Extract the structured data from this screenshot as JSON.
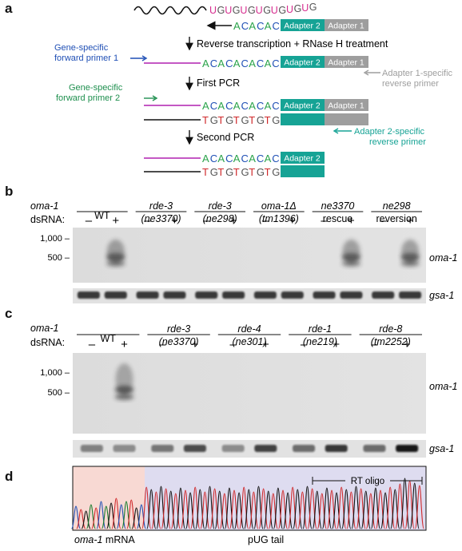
{
  "figure": {
    "panel_a": {
      "label": "a",
      "rna_tail": [
        "U",
        "G",
        "U",
        "G",
        "U",
        "G",
        "U",
        "G",
        "U",
        "G",
        "U",
        "G",
        "U",
        "G"
      ],
      "rt_oligo_seq": [
        "A",
        "C",
        "A",
        "C",
        "A",
        "C"
      ],
      "cdna_seq": [
        "A",
        "C",
        "A",
        "C",
        "A",
        "C",
        "A",
        "C",
        "A",
        "C"
      ],
      "pcr_bottom_seq": [
        "T",
        "G",
        "T",
        "G",
        "T",
        "G",
        "T",
        "G",
        "T",
        "G"
      ],
      "adapter2": "Adapter 2",
      "adapter1": "Adapter 1",
      "step1": "Reverse transcription + RNase H treatment",
      "step2": "First PCR",
      "step3": "Second PCR",
      "primer1_line1": "Gene-specific",
      "primer1_line2": "forward primer 1",
      "primer2_line1": "Gene-specific",
      "primer2_line2": "forward primer 2",
      "rev1_line1": "Adapter 1-specific",
      "rev1_line2": "reverse primer",
      "rev2_line1": "Adapter 2-specific",
      "rev2_line2": "reverse primer"
    },
    "panel_b": {
      "label": "b",
      "gene": "oma-1",
      "dsrna": "dsRNA:",
      "minus": "–",
      "plus": "+",
      "groups": [
        {
          "l1": "WT",
          "l2": ""
        },
        {
          "l1": "rde-3",
          "l2": "(ne3370)"
        },
        {
          "l1": "rde-3",
          "l2": "(ne298)"
        },
        {
          "l1": "oma-1Δ",
          "l2": "(tm1396)"
        },
        {
          "l1": "ne3370",
          "l2": "rescue"
        },
        {
          "l1": "ne298",
          "l2": "reversion"
        }
      ],
      "marker_1000": "1,000 –",
      "marker_500": "500 –",
      "gel_label": "oma-1",
      "loading_label": "gsa-1"
    },
    "panel_c": {
      "label": "c",
      "gene": "oma-1",
      "dsrna": "dsRNA:",
      "minus": "–",
      "plus": "+",
      "groups": [
        {
          "l1": "WT",
          "l2": ""
        },
        {
          "l1": "rde-3",
          "l2": "(ne3370)"
        },
        {
          "l1": "rde-4",
          "l2": "(ne301)"
        },
        {
          "l1": "rde-1",
          "l2": "(ne219)"
        },
        {
          "l1": "rde-8",
          "l2": "(tm2252)"
        }
      ],
      "marker_1000": "1,000 –",
      "marker_500": "500 –",
      "gel_label": "oma-1",
      "loading_label": "gsa-1"
    },
    "panel_d": {
      "label": "d",
      "rt_oligo": "RT oligo",
      "mrna_label": "oma-1",
      "mrna_suffix": " mRNA",
      "tail_label": "pUG tail"
    }
  },
  "colors": {
    "U": "#d62d8f",
    "G": "#555555",
    "A": "#2aa34a",
    "C": "#1f4fb5",
    "T": "#d0292b",
    "adapter2": "#16a395",
    "adapter1": "#9e9e9e",
    "primer_blue": "#1f4fb5",
    "primer_green": "#1e8f4e",
    "magenta_line": "#b020b0",
    "rev_gray": "#9e9e9e",
    "rev_teal": "#16a395",
    "mrna_bg": "#f8d9d3",
    "tail_bg": "#dedcf0"
  }
}
